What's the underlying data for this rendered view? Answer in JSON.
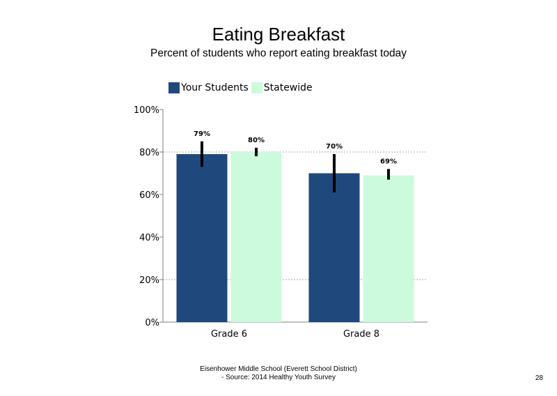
{
  "chart_data": {
    "type": "bar",
    "title": "Eating Breakfast",
    "subtitle": "Percent of students who report eating breakfast today",
    "categories": [
      "Grade 6",
      "Grade 8"
    ],
    "series": [
      {
        "name": "Your Students",
        "color": "#1f497d",
        "values": [
          79,
          70
        ],
        "labels": [
          "79%",
          "70%"
        ],
        "error_low": [
          73,
          61
        ],
        "error_high": [
          85,
          79
        ]
      },
      {
        "name": "Statewide",
        "color": "#ccfadc",
        "values": [
          80,
          69
        ],
        "labels": [
          "80%",
          "69%"
        ],
        "error_low": [
          78,
          67
        ],
        "error_high": [
          82,
          72
        ]
      }
    ],
    "ylim": [
      0,
      100
    ],
    "yticks": [
      0,
      20,
      40,
      60,
      80,
      100
    ],
    "ytick_labels": [
      "0%",
      "20%",
      "40%",
      "60%",
      "80%",
      "100%"
    ],
    "gridlines": [
      20,
      80
    ],
    "legend_position": "top"
  },
  "footer": {
    "line1": "Eisenhower Middle School (Everett School District)",
    "line2": "- Source: 2014 Healthy  Youth Survey"
  },
  "page_number": "28"
}
